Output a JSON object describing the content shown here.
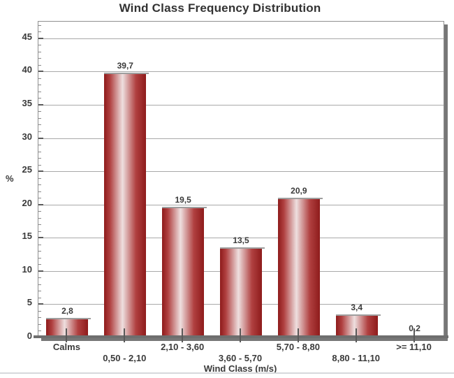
{
  "chart_data": {
    "type": "bar",
    "title": "Wind Class Frequency Distribution",
    "xlabel": "Wind Class (m/s)",
    "ylabel": "%",
    "categories": [
      "Calms",
      "0,50 - 2,10",
      "2,10 - 3,60",
      "3,60 - 5,70",
      "5,70 - 8,80",
      "8,80 - 11,10",
      ">= 11,10"
    ],
    "values": [
      2.8,
      39.7,
      19.5,
      13.5,
      20.9,
      3.4,
      0.2
    ],
    "value_labels": [
      "2,8",
      "39,7",
      "19,5",
      "13,5",
      "20,9",
      "3,4",
      "0,2"
    ],
    "ylim": [
      0,
      47.5
    ],
    "ytick_interval": 5,
    "ytick_labels": [
      "0",
      "5",
      "10",
      "15",
      "20",
      "25",
      "30",
      "35",
      "40",
      "45"
    ],
    "minor_tick_interval": 1,
    "grid": true,
    "legend": "none",
    "xlabel_rows_staggered": true,
    "colors": {
      "bar_edge": "#8e1b1b",
      "bar_mid": "#b04040",
      "bar_highlight": "#eedfdf",
      "bar_cap": "#9e9e9e",
      "grid_line": "#a9a9a9",
      "tick_mark": "#5a5a5a",
      "axis_line": "#6e6e6e",
      "text": "#3a3a3a",
      "bottom_divider": "#d6d9dc"
    }
  }
}
